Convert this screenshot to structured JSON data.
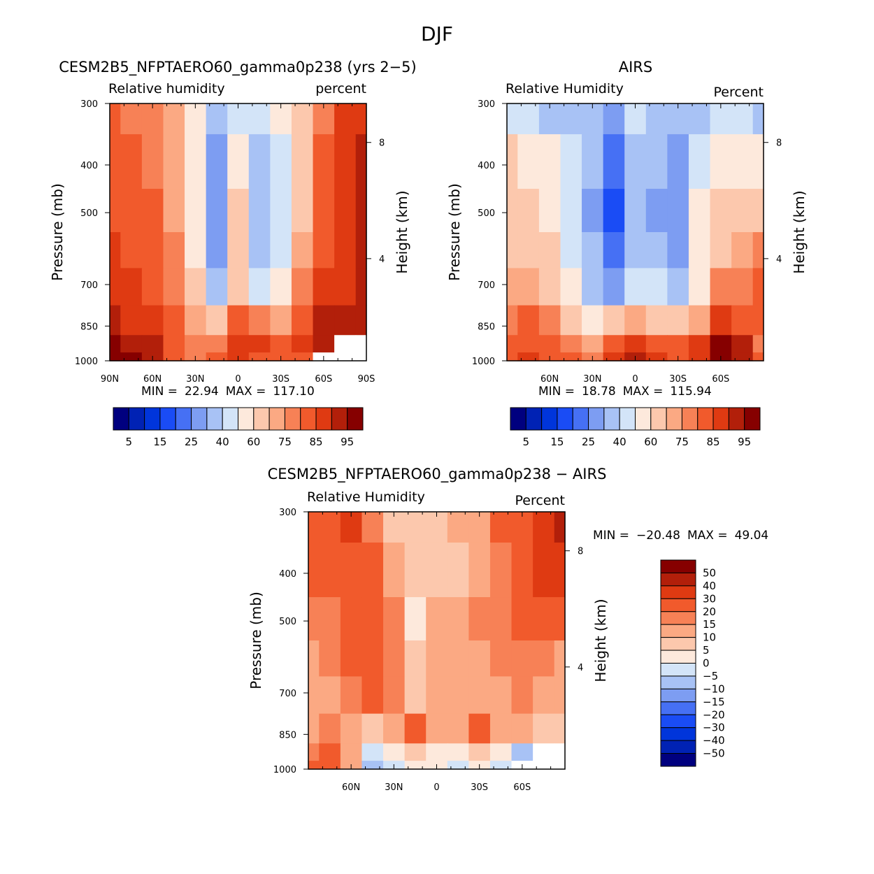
{
  "figure_title": "DJF",
  "colors": {
    "abs_palette": [
      "#00007f",
      "#0022b4",
      "#0035db",
      "#1a4cf5",
      "#4670f4",
      "#7d9df2",
      "#a8c2f5",
      "#d3e4f8",
      "#fde9dc",
      "#fcc8ad",
      "#fba983",
      "#f78156",
      "#f15a2c",
      "#df3a12",
      "#b21f0a",
      "#860000"
    ],
    "diff_palette": [
      "#00007f",
      "#0022b4",
      "#0035db",
      "#1a4cf5",
      "#4670f4",
      "#7d9df2",
      "#a8c2f5",
      "#d3e4f8",
      "#fde9dc",
      "#fcc8ad",
      "#fba983",
      "#f78156",
      "#f15a2c",
      "#df3a12",
      "#b21f0a",
      "#860000"
    ]
  },
  "chart_data": [
    {
      "type": "heatmap",
      "panel": "model",
      "title": "CESM2B5_NFPTAERO60_gamma0p238 (yrs 2−5)",
      "variable_label": "Relative humidity",
      "units_label": "percent",
      "ylabel": "Pressure (mb)",
      "ylabel_right": "Height (km)",
      "x_ticks": [
        "90N",
        "60N",
        "30N",
        "0",
        "30S",
        "60S",
        "90S"
      ],
      "y_ticks": [
        "300",
        "400",
        "500",
        "700",
        "850",
        "1000"
      ],
      "right_ticks": [
        "8",
        "4"
      ],
      "min_label": "MIN =",
      "min_value": "22.94",
      "max_label": "MAX =",
      "max_value": "117.10",
      "colorbar_ticks": [
        "5",
        "15",
        "25",
        "40",
        "60",
        "75",
        "85",
        "95"
      ],
      "x": [
        -90,
        -75,
        -60,
        -45,
        -30,
        -15,
        0,
        15,
        30,
        45,
        60,
        75,
        90
      ],
      "pressure": [
        300,
        400,
        500,
        600,
        700,
        850,
        925,
        1000
      ],
      "values": [
        [
          80,
          78,
          76,
          70,
          55,
          30,
          45,
          40,
          50,
          60,
          75,
          85,
          88
        ],
        [
          82,
          80,
          78,
          72,
          50,
          28,
          55,
          35,
          45,
          65,
          80,
          88,
          90
        ],
        [
          83,
          82,
          80,
          74,
          52,
          25,
          60,
          35,
          40,
          68,
          82,
          88,
          90
        ],
        [
          85,
          83,
          82,
          76,
          55,
          28,
          62,
          38,
          45,
          70,
          82,
          88,
          90
        ],
        [
          86,
          85,
          84,
          78,
          60,
          32,
          62,
          45,
          50,
          75,
          85,
          88,
          90
        ],
        [
          90,
          88,
          86,
          80,
          70,
          65,
          80,
          75,
          72,
          82,
          90,
          92,
          92
        ],
        [
          95,
          92,
          90,
          82,
          75,
          78,
          88,
          85,
          80,
          86,
          92,
          null,
          null
        ],
        [
          100,
          96,
          92,
          84,
          78,
          80,
          88,
          84,
          80,
          82,
          null,
          null,
          null
        ]
      ]
    },
    {
      "type": "heatmap",
      "panel": "obs",
      "title": "AIRS",
      "variable_label": "Relative Humidity",
      "units_label": "Percent",
      "ylabel": "Pressure (mb)",
      "ylabel_right": "Height (km)",
      "x_ticks": [
        "60N",
        "30N",
        "0",
        "30S",
        "60S"
      ],
      "y_ticks": [
        "300",
        "400",
        "500",
        "700",
        "850",
        "1000"
      ],
      "right_ticks": [
        "8",
        "4"
      ],
      "min_label": "MIN =",
      "min_value": "18.78",
      "max_label": "MAX =",
      "max_value": "115.94",
      "colorbar_ticks": [
        "5",
        "15",
        "25",
        "40",
        "60",
        "75",
        "85",
        "95"
      ],
      "x": [
        -90,
        -75,
        -60,
        -45,
        -30,
        -15,
        0,
        15,
        30,
        45,
        60,
        75,
        90
      ],
      "pressure": [
        300,
        400,
        500,
        600,
        700,
        850,
        925,
        1000
      ],
      "values": [
        [
          45,
          40,
          38,
          35,
          30,
          25,
          40,
          35,
          30,
          38,
          42,
          40,
          38
        ],
        [
          60,
          58,
          50,
          40,
          30,
          22,
          35,
          30,
          28,
          45,
          55,
          58,
          56
        ],
        [
          65,
          62,
          58,
          45,
          28,
          18,
          30,
          28,
          25,
          50,
          62,
          65,
          68
        ],
        [
          68,
          66,
          62,
          48,
          32,
          22,
          35,
          32,
          28,
          52,
          68,
          72,
          75
        ],
        [
          70,
          70,
          66,
          52,
          38,
          28,
          45,
          40,
          35,
          58,
          75,
          78,
          80
        ],
        [
          78,
          80,
          76,
          62,
          58,
          60,
          70,
          65,
          60,
          72,
          85,
          82,
          80
        ],
        [
          80,
          84,
          82,
          75,
          72,
          80,
          88,
          82,
          80,
          85,
          95,
          90,
          78
        ],
        [
          82,
          86,
          84,
          80,
          78,
          86,
          90,
          85,
          82,
          88,
          100,
          92,
          80
        ]
      ]
    },
    {
      "type": "heatmap",
      "panel": "difference",
      "title": "CESM2B5_NFPTAERO60_gamma0p238 − AIRS",
      "variable_label": "Relative Humidity",
      "units_label": "Percent",
      "ylabel": "Pressure (mb)",
      "ylabel_right": "Height (km)",
      "x_ticks": [
        "60N",
        "30N",
        "0",
        "30S",
        "60S"
      ],
      "y_ticks": [
        "300",
        "400",
        "500",
        "700",
        "850",
        "1000"
      ],
      "right_ticks": [
        "8",
        "4"
      ],
      "min_label": "MIN =",
      "min_value": "−20.48",
      "max_label": "MAX =",
      "max_value": "49.04",
      "colorbar_ticks": [
        "50",
        "40",
        "30",
        "20",
        "15",
        "10",
        "5",
        "0",
        "−5",
        "−10",
        "−15",
        "−20",
        "−30",
        "−40",
        "−50"
      ],
      "x": [
        -90,
        -75,
        -60,
        -45,
        -30,
        -15,
        0,
        15,
        30,
        45,
        60,
        75,
        90
      ],
      "pressure": [
        300,
        400,
        500,
        600,
        700,
        850,
        925,
        1000
      ],
      "values": [
        [
          25,
          28,
          30,
          18,
          8,
          6,
          8,
          10,
          12,
          22,
          28,
          35,
          40
        ],
        [
          20,
          24,
          28,
          20,
          10,
          5,
          8,
          8,
          12,
          18,
          25,
          30,
          35
        ],
        [
          15,
          18,
          22,
          24,
          15,
          3,
          12,
          10,
          16,
          18,
          20,
          22,
          25
        ],
        [
          12,
          15,
          20,
          22,
          16,
          6,
          12,
          10,
          12,
          15,
          18,
          16,
          14
        ],
        [
          10,
          14,
          18,
          20,
          15,
          8,
          12,
          10,
          12,
          14,
          16,
          14,
          12
        ],
        [
          12,
          16,
          12,
          8,
          14,
          22,
          14,
          12,
          22,
          14,
          10,
          8,
          8
        ],
        [
          18,
          22,
          10,
          -3,
          2,
          6,
          2,
          4,
          5,
          2,
          -6,
          null,
          null
        ],
        [
          25,
          28,
          12,
          -8,
          -2,
          4,
          0,
          -3,
          0,
          -5,
          null,
          null,
          null
        ]
      ]
    }
  ]
}
